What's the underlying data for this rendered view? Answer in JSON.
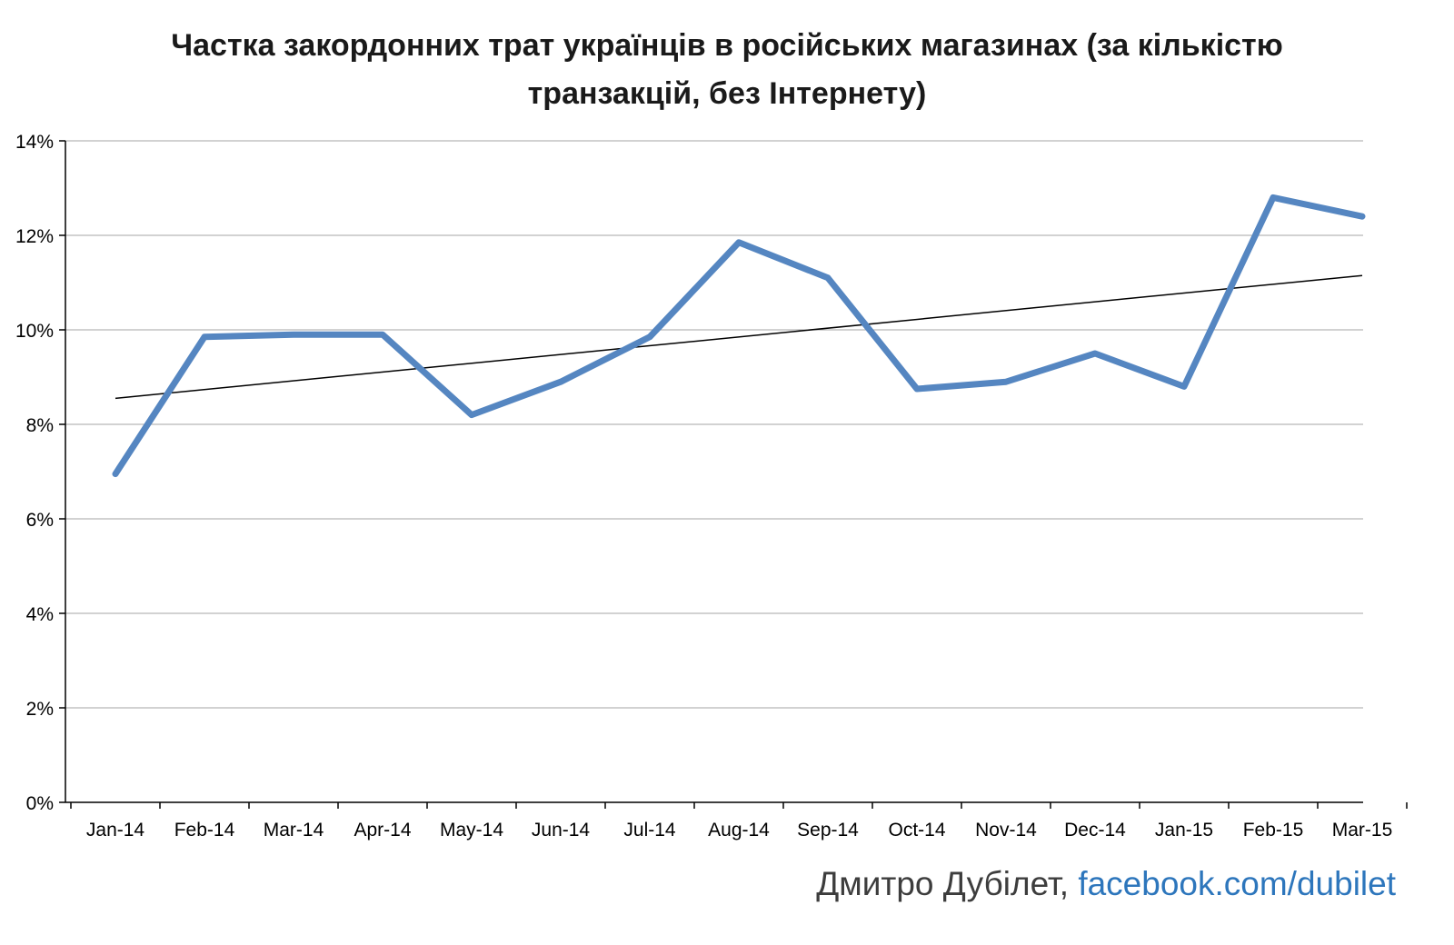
{
  "title": "Частка закордонних трат українців в російських магазинах (за кількістю транзакцій, без Інтернету)",
  "footer": {
    "author": "Дмитро Дубілет, ",
    "link": "facebook.com/dubilet"
  },
  "chart_data": {
    "type": "line",
    "title": "Частка закордонних трат українців в російських магазинах (за кількістю транзакцій, без Інтернету)",
    "categories": [
      "Jan-14",
      "Feb-14",
      "Mar-14",
      "Apr-14",
      "May-14",
      "Jun-14",
      "Jul-14",
      "Aug-14",
      "Sep-14",
      "Oct-14",
      "Nov-14",
      "Dec-14",
      "Jan-15",
      "Feb-15",
      "Mar-15"
    ],
    "series": [
      {
        "name": "share-of-foreign-spend",
        "values": [
          6.95,
          9.85,
          9.9,
          9.9,
          8.2,
          8.9,
          9.85,
          11.85,
          11.1,
          8.75,
          8.9,
          9.5,
          8.8,
          12.8,
          12.4
        ]
      }
    ],
    "trendline": {
      "type": "linear",
      "start": 8.55,
      "end": 11.15
    },
    "xlabel": "",
    "ylabel": "",
    "ylim": [
      0,
      14
    ],
    "ytick_step": 2,
    "ytick_labels": [
      "0%",
      "2%",
      "4%",
      "6%",
      "8%",
      "10%",
      "12%",
      "14%"
    ],
    "grid": true,
    "legend": "none",
    "line_color": "#5586C1",
    "trend_color": "#000000",
    "grid_color": "#A6A6A6",
    "axis_color": "#000000",
    "tick_label_color": "#000000"
  }
}
